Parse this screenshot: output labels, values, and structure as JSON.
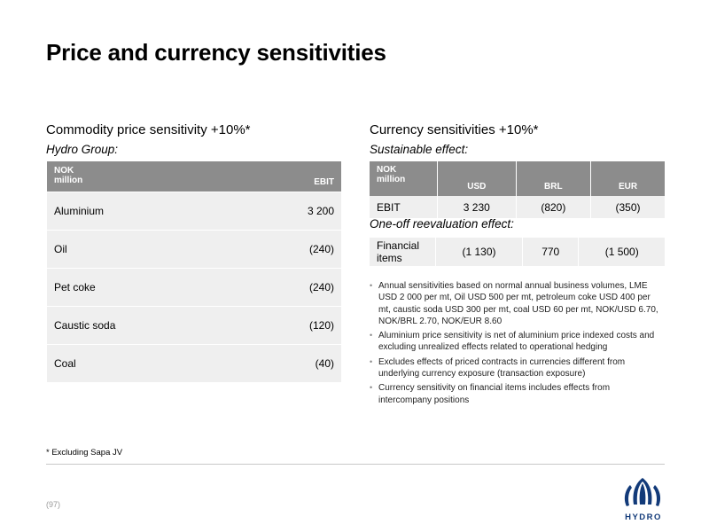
{
  "title": "Price and currency sensitivities",
  "commodity": {
    "heading": "Commodity price sensitivity +10%*",
    "subheading": "Hydro Group:",
    "header": {
      "unit_line1": "NOK",
      "unit_line2": "million",
      "col": "EBIT"
    },
    "rows": [
      {
        "label": "Aluminium",
        "value": "3 200"
      },
      {
        "label": "Oil",
        "value": "(240)"
      },
      {
        "label": "Pet coke",
        "value": "(240)"
      },
      {
        "label": "Caustic soda",
        "value": "(120)"
      },
      {
        "label": "Coal",
        "value": "(40)"
      }
    ]
  },
  "currency": {
    "heading": "Currency sensitivities +10%*",
    "subheading": "Sustainable effect:",
    "header": {
      "unit_line1": "NOK",
      "unit_line2": "million",
      "cols": [
        "USD",
        "BRL",
        "EUR"
      ]
    },
    "row": {
      "label": "EBIT",
      "values": [
        "3 230",
        "(820)",
        "(350)"
      ]
    },
    "oneoff_heading": "One-off reevaluation effect:",
    "oneoff_row": {
      "label_line1": "Financial",
      "label_line2": "items",
      "values": [
        "(1 130)",
        "770",
        "(1 500)"
      ]
    }
  },
  "bullets": [
    "Annual sensitivities based on normal annual business volumes, LME USD 2 000 per mt, Oil USD 500 per mt, petroleum coke USD 400 per mt, caustic soda USD 300 per mt, coal USD 60 per mt, NOK/USD 6.70, NOK/BRL 2.70, NOK/EUR 8.60",
    "Aluminium price sensitivity is net of aluminium price indexed costs and excluding unrealized effects related to operational hedging",
    "Excludes effects of priced contracts in currencies different from underlying currency exposure (transaction exposure)",
    "Currency sensitivity on financial items includes effects from intercompany positions"
  ],
  "footnote": "* Excluding Sapa JV",
  "page_number": "(97)",
  "logo": {
    "text": "HYDRO",
    "color": "#123a79",
    "icon": "hydro-logo-icon"
  }
}
